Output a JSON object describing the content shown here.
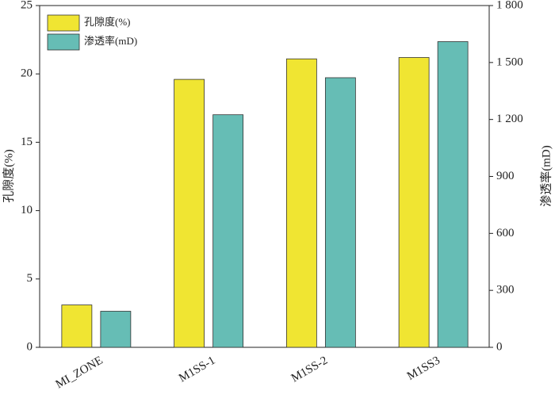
{
  "chart_data": {
    "type": "bar",
    "categories": [
      "MI_ZONE",
      "M1SS-1",
      "M1SS-2",
      "M1SS3"
    ],
    "series": [
      {
        "name": "孔隙度(%)",
        "color": "#f0e532",
        "values": [
          3.1,
          19.6,
          21.1,
          21.2
        ]
      },
      {
        "name": "渗透率(mD)",
        "color": "#66bdb5",
        "values": [
          190,
          1225,
          1420,
          1610
        ],
        "axis": "y2"
      }
    ],
    "ylabel": "孔隙度(%)",
    "y2label": "渗透率(mD)",
    "ylim": [
      0,
      25
    ],
    "yticks": [
      0,
      5,
      10,
      15,
      20,
      25
    ],
    "y2lim": [
      0,
      1800
    ],
    "y2ticks": [
      0,
      300,
      600,
      900,
      {
        "value": 1200,
        "label": "1 200"
      },
      {
        "value": 1500,
        "label": "1 500"
      },
      {
        "value": 1800,
        "label": "1 800"
      }
    ],
    "legend": "upper left"
  }
}
